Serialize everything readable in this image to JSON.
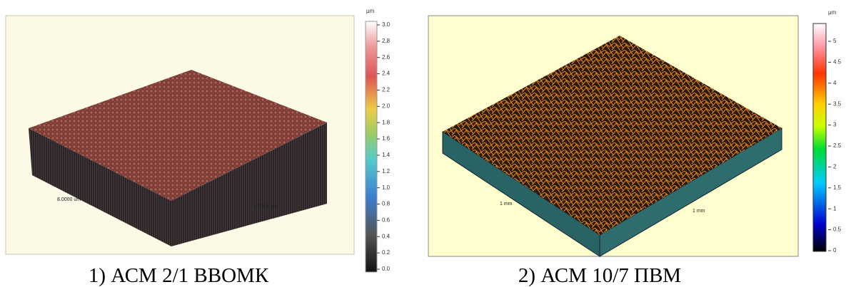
{
  "panels": [
    {
      "caption": "1) АСМ 2/1 ВВОМК",
      "colorbar": {
        "unit": "μm",
        "labels": [
          "3.0",
          "2.8",
          "2.6",
          "2.4",
          "2.2",
          "2.0",
          "1.8",
          "1.6",
          "1.4",
          "1.2",
          "1.0",
          "0.8",
          "0.6",
          "0.4",
          "0.2",
          "0.0"
        ]
      },
      "axis_labels": [
        "8.0000 um",
        "8.0000 um"
      ]
    },
    {
      "caption": "2) АСМ 10/7 ПВМ",
      "colorbar": {
        "unit": "μm",
        "labels": [
          "5",
          "4.5",
          "4",
          "3.5",
          "3",
          "2.5",
          "2",
          "1.5",
          "1",
          "0.5",
          "0"
        ]
      },
      "axis_labels": [
        "1 mm",
        "1 mm"
      ]
    }
  ]
}
